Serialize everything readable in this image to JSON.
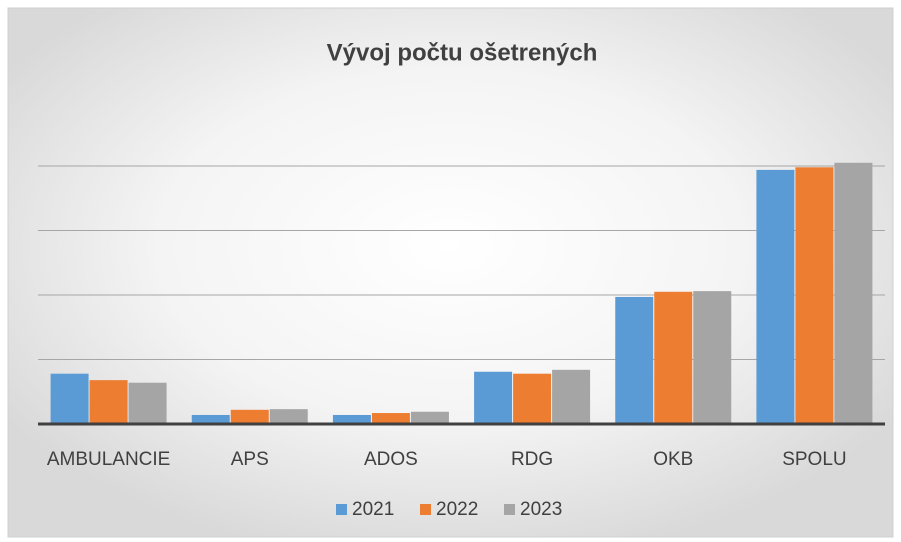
{
  "chart_data": {
    "type": "bar",
    "title": "Vývoj počtu ošetrených",
    "categories": [
      "AMBULANCIE",
      "APS",
      "ADOS",
      "RDG",
      "OKB",
      "SPOLU"
    ],
    "series": [
      {
        "name": "2021",
        "color": "#5b9bd5",
        "values": [
          0.78,
          0.14,
          0.14,
          0.81,
          1.97,
          3.94
        ]
      },
      {
        "name": "2022",
        "color": "#ed7d31",
        "values": [
          0.68,
          0.22,
          0.17,
          0.78,
          2.05,
          3.98
        ]
      },
      {
        "name": "2023",
        "color": "#a5a5a5",
        "values": [
          0.64,
          0.23,
          0.19,
          0.84,
          2.06,
          4.05
        ]
      }
    ],
    "ylim": [
      0,
      4
    ],
    "yticks": [
      0,
      1,
      2,
      3,
      4
    ],
    "grid": true,
    "legend": "bottom"
  }
}
